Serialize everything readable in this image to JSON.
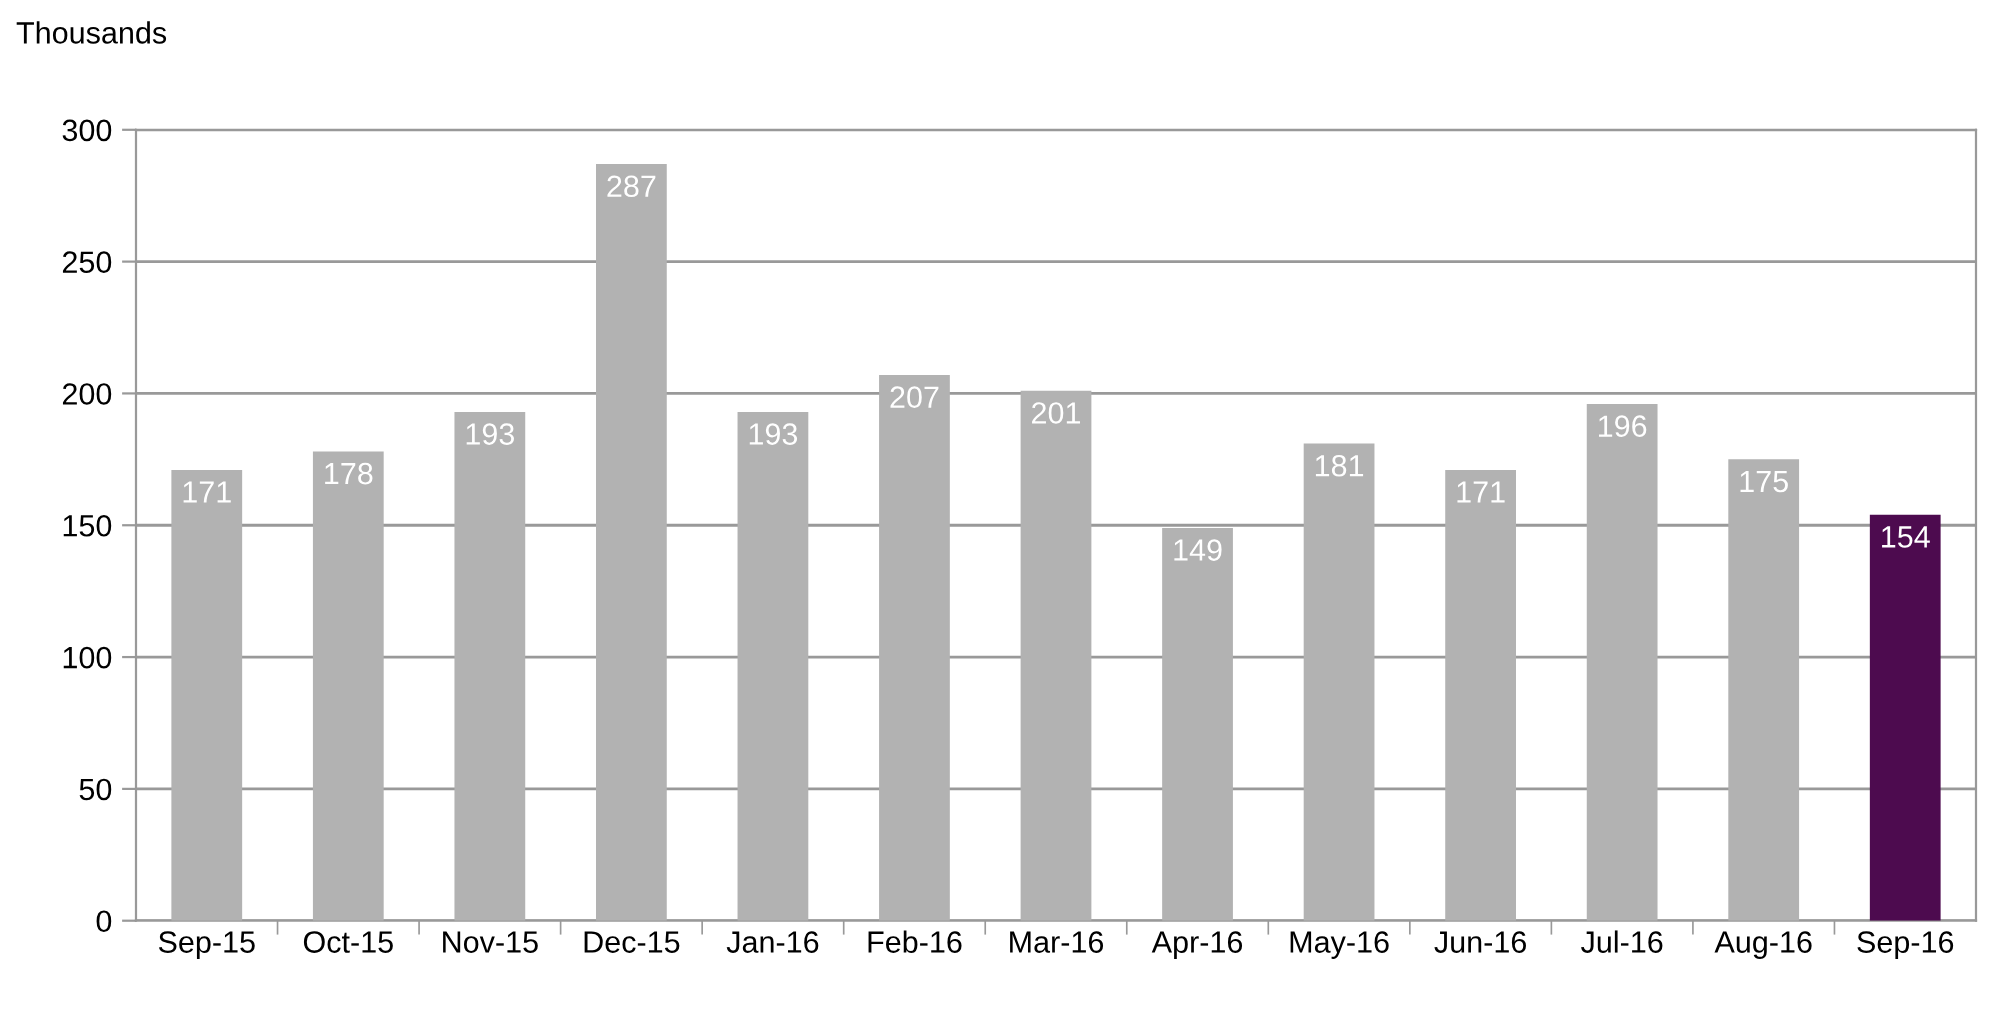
{
  "chart_data": {
    "type": "bar",
    "ylabel": "Thousands",
    "categories": [
      "Sep-15",
      "Oct-15",
      "Nov-15",
      "Dec-15",
      "Jan-16",
      "Feb-16",
      "Mar-16",
      "Apr-16",
      "May-16",
      "Jun-16",
      "Jul-16",
      "Aug-16",
      "Sep-16"
    ],
    "values": [
      171,
      178,
      193,
      287,
      193,
      207,
      201,
      149,
      181,
      171,
      196,
      175,
      154
    ],
    "colors": [
      "#b2b2b2",
      "#b2b2b2",
      "#b2b2b2",
      "#b2b2b2",
      "#b2b2b2",
      "#b2b2b2",
      "#b2b2b2",
      "#b2b2b2",
      "#b2b2b2",
      "#b2b2b2",
      "#b2b2b2",
      "#b2b2b2",
      "#4d0b4f"
    ],
    "ylim": [
      0,
      300
    ],
    "yticks": [
      0,
      50,
      100,
      150,
      200,
      250,
      300
    ],
    "grid": "y",
    "data_labels": true,
    "legend": false
  }
}
